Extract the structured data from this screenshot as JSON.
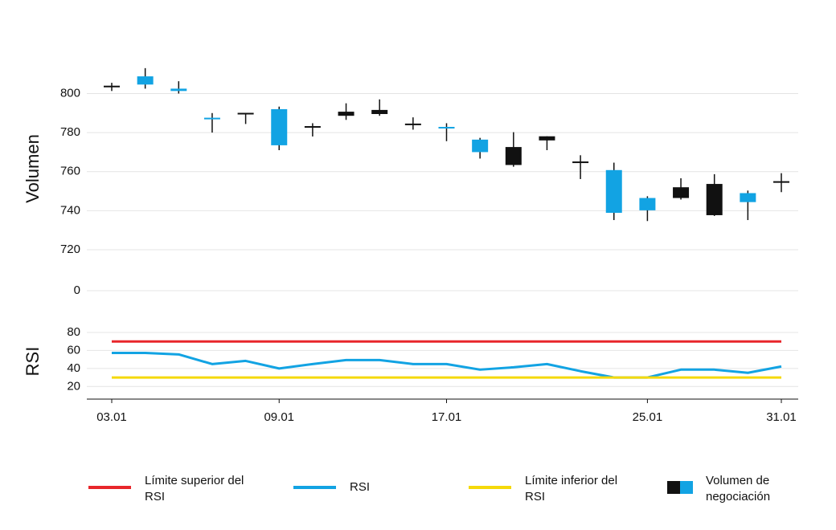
{
  "chart_data": [
    {
      "type": "candlestick",
      "y_label": "Volumen",
      "series_name": "Volumen de negociación",
      "up_color": "#12a3e3",
      "down_color": "#111111",
      "open": [
        803.6,
        804.6,
        801.3,
        786.8,
        789.7,
        773.5,
        782.9,
        790.7,
        791.6,
        784.2,
        782.1,
        770.0,
        772.6,
        778.1,
        764.8,
        738.9,
        740.2,
        752.0,
        753.7,
        744.4,
        754.7
      ],
      "high": [
        805.5,
        813.0,
        806.3,
        790.0,
        790.0,
        793.3,
        784.8,
        795.0,
        797.0,
        787.8,
        784.8,
        777.3,
        780.2,
        778.1,
        768.4,
        764.6,
        747.4,
        756.6,
        758.7,
        750.3,
        759.2
      ],
      "low": [
        801.3,
        802.5,
        800.0,
        780.0,
        784.4,
        771.0,
        778.0,
        786.5,
        788.6,
        781.5,
        775.6,
        766.7,
        762.5,
        771.0,
        756.2,
        735.2,
        734.7,
        745.7,
        737.3,
        735.2,
        749.5
      ],
      "close": [
        803.2,
        808.8,
        802.5,
        787.2,
        789.3,
        792.0,
        782.5,
        788.6,
        789.5,
        783.8,
        782.5,
        776.4,
        763.4,
        776.0,
        764.4,
        760.8,
        746.5,
        746.5,
        737.7,
        749.0,
        754.3
      ],
      "ylim": [
        0,
        815
      ],
      "yticks": [
        0,
        720,
        740,
        760,
        780,
        800
      ],
      "axis_break": true,
      "grid": true
    },
    {
      "type": "line",
      "y_label": "RSI",
      "categories": [
        "03.01",
        null,
        null,
        null,
        null,
        "09.01",
        null,
        null,
        null,
        null,
        "17.01",
        null,
        null,
        null,
        null,
        null,
        "25.01",
        null,
        null,
        null,
        "31.01"
      ],
      "series": [
        {
          "name": "Límite superior del RSI",
          "color": "#e8262b",
          "values": [
            70,
            70,
            70,
            70,
            70,
            70,
            70,
            70,
            70,
            70,
            70,
            70,
            70,
            70,
            70,
            70,
            70,
            70,
            70,
            70,
            70
          ]
        },
        {
          "name": "RSI",
          "color": "#12a3e3",
          "values": [
            57.3,
            57.3,
            55.6,
            44.9,
            48.4,
            40,
            44.9,
            49.3,
            49.3,
            44.9,
            44.9,
            38.7,
            41.3,
            44.9,
            37,
            30,
            30,
            38.7,
            38.7,
            35.2,
            42.2
          ]
        },
        {
          "name": "Límite inferior del RSI",
          "color": "#f5d90a",
          "values": [
            30,
            30,
            30,
            30,
            30,
            30,
            30,
            30,
            30,
            30,
            30,
            30,
            30,
            30,
            30,
            30,
            30,
            30,
            30,
            30,
            30
          ]
        }
      ],
      "ylim": [
        6,
        88
      ],
      "yticks": [
        20,
        40,
        60,
        80
      ],
      "grid": true,
      "legend": "bottom"
    }
  ]
}
